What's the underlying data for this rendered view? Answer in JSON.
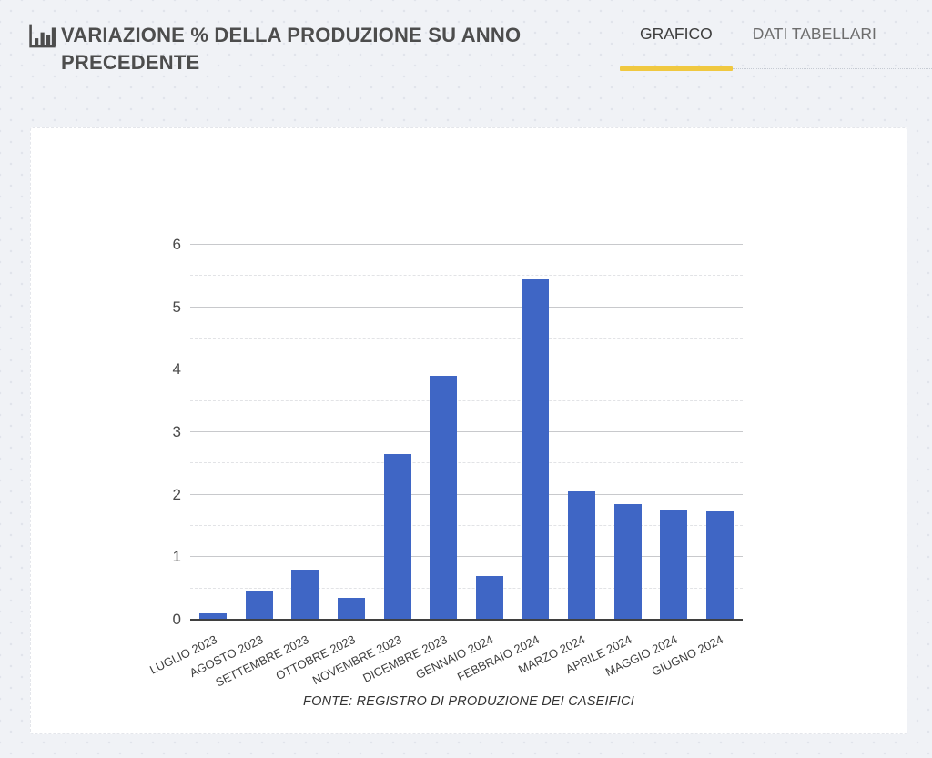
{
  "header": {
    "title": "VARIAZIONE % DELLA PRODUZIONE SU ANNO PRECEDENTE",
    "icon": "bar-chart-icon",
    "tabs": [
      {
        "label": "GRAFICO",
        "active": true
      },
      {
        "label": "DATI TABELLARI",
        "active": false
      }
    ]
  },
  "colors": {
    "page_bg": "#F0F2F6",
    "card_bg": "#FFFFFF",
    "accent_yellow": "#F0C840",
    "bar_blue": "#3F66C5",
    "title_text": "#4D4D4D",
    "tab_active_text": "#3D3D3D",
    "tab_inactive_text": "#6D6D6D",
    "axis_line": "#3F3F3F",
    "grid_major": "#C8C9CC",
    "grid_minor": "#E2E3E6"
  },
  "chart_data": {
    "type": "bar",
    "title": "VARIAZIONE % DELLA PRODUZIONE SU ANNO PRECEDENTE",
    "categories": [
      "LUGLIO 2023",
      "AGOSTO 2023",
      "SETTEMBRE 2023",
      "OTTOBRE 2023",
      "NOVEMBRE 2023",
      "DICEMBRE 2023",
      "GENNAIO 2024",
      "FEBBRAIO 2024",
      "MARZO 2024",
      "APRILE 2024",
      "MAGGIO 2024",
      "GIUGNO 2024"
    ],
    "values": [
      0.1,
      0.45,
      0.8,
      0.35,
      2.65,
      3.9,
      0.7,
      5.45,
      2.05,
      1.85,
      1.75,
      1.73
    ],
    "xlabel": "",
    "ylabel": "",
    "ylim": [
      0,
      6
    ],
    "y_ticks": [
      0,
      1,
      2,
      3,
      4,
      5,
      6
    ],
    "y_minor_step": 0.5,
    "grid": true,
    "legend": "none",
    "bar_color": "#3F66C5",
    "source_note": "FONTE: REGISTRO DI PRODUZIONE DEI CASEIFICI"
  }
}
